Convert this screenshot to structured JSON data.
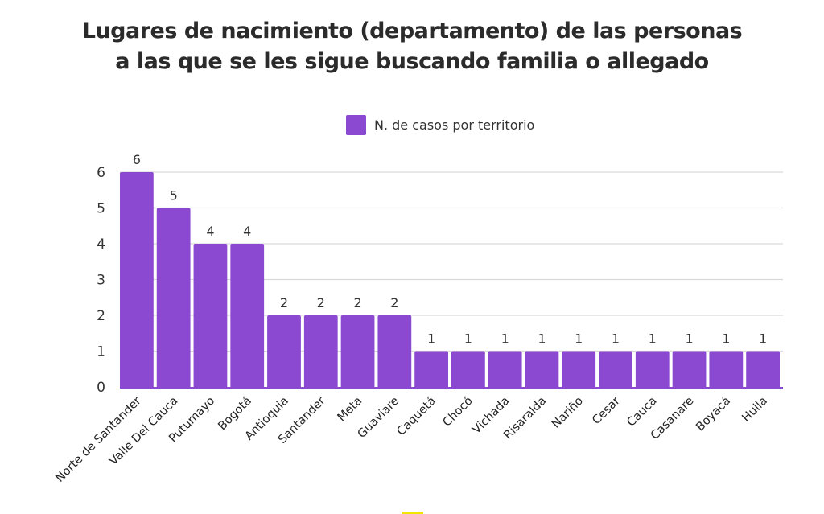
{
  "chart_data": {
    "type": "bar",
    "title": "Lugares de nacimiento (departamento) de las personas a las que se les sigue buscando familia o allegado",
    "title_lines": [
      "Lugares de nacimiento (departamento) de las personas",
      "a las que se les sigue buscando familia o allegado"
    ],
    "xlabel": "",
    "ylabel": "",
    "ylim": [
      0,
      6
    ],
    "yticks": [
      0,
      1,
      2,
      3,
      4,
      5,
      6
    ],
    "grid": true,
    "legend_position": "top-center",
    "series": [
      {
        "name": "N. de casos por territorio",
        "color": "#8b49d1",
        "values": [
          6,
          5,
          4,
          4,
          2,
          2,
          2,
          2,
          1,
          1,
          1,
          1,
          1,
          1,
          1,
          1,
          1,
          1
        ]
      }
    ],
    "categories": [
      "Norte de Santander",
      "Valle Del Cauca",
      "Putumayo",
      "Bogotá",
      "Antioquia",
      "Santander",
      "Meta",
      "Guaviare",
      "Caquetá",
      "Chocó",
      "Vichada",
      "Risaralda",
      "Nariño",
      "Cesar",
      "Cauca",
      "Casanare",
      "Boyacá",
      "Huila"
    ],
    "data_labels": true
  },
  "colors": {
    "bar": "#8b49d1",
    "grid": "#d9d9d9",
    "accent_mark": "#f2e600"
  }
}
